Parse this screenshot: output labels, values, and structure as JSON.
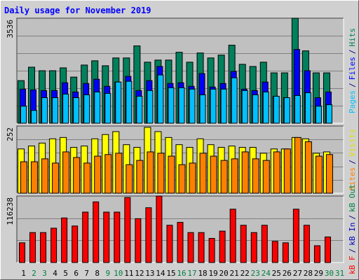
{
  "chart_data": [
    {
      "type": "bar",
      "title": "Daily usage for November 2019",
      "ylim": [
        0,
        3536
      ],
      "yticks": [
        3536
      ],
      "legend_separator": "/",
      "series": [
        {
          "name": "Pages",
          "color": "#00c0ff",
          "values": [
            573,
            430,
            860,
            860,
            979,
            860,
            956,
            1051,
            1003,
            1386,
            1410,
            908,
            1099,
            1624,
            1195,
            1195,
            1147,
            956,
            1147,
            1147,
            1529,
            1099,
            956,
            1051,
            908,
            860,
            932,
            1027,
            573,
            621,
            null
          ]
        },
        {
          "name": "Files",
          "color": "#0000ff",
          "values": [
            1147,
            1123,
            1099,
            1099,
            1362,
            1051,
            1338,
            1481,
            1242,
            1386,
            1577,
            1099,
            1433,
            1911,
            1338,
            1362,
            1242,
            1672,
            1218,
            1338,
            1744,
            1147,
            1099,
            1386,
            908,
            860,
            2485,
            1768,
            860,
            1051,
            null
          ]
        },
        {
          "name": "Hits",
          "color": "#00805c",
          "values": [
            1434,
            1887,
            1768,
            1768,
            1864,
            1553,
            1959,
            2102,
            1935,
            2198,
            2198,
            2604,
            2055,
            2126,
            2126,
            2389,
            2055,
            2365,
            2198,
            2294,
            2628,
            1983,
            1911,
            2055,
            1696,
            1696,
            3536,
            2437,
            1696,
            1696,
            null
          ]
        }
      ]
    },
    {
      "type": "bar",
      "ylim": [
        0,
        252
      ],
      "yticks": [
        252
      ],
      "legend_separator": "/",
      "series": [
        {
          "name": "Sites",
          "color": "#ff8000",
          "values": [
            118,
            118,
            129,
            113,
            155,
            134,
            113,
            139,
            145,
            150,
            107,
            123,
            155,
            150,
            139,
            107,
            113,
            150,
            139,
            123,
            129,
            155,
            129,
            123,
            155,
            166,
            209,
            193,
            139,
            145,
            null
          ]
        },
        {
          "name": "Visits",
          "color": "#ffff00",
          "values": [
            166,
            177,
            188,
            204,
            209,
            172,
            177,
            204,
            220,
            231,
            182,
            172,
            247,
            231,
            209,
            182,
            172,
            204,
            182,
            172,
            177,
            172,
            172,
            150,
            166,
            166,
            209,
            204,
            150,
            155,
            null
          ]
        }
      ]
    },
    {
      "type": "bar",
      "ylim": [
        0,
        116238
      ],
      "yticks": [
        116238
      ],
      "legend_separator": "/",
      "categories": [
        "1",
        "2",
        "3",
        "4",
        "5",
        "6",
        "7",
        "8",
        "9",
        "10",
        "11",
        "12",
        "13",
        "14",
        "15",
        "16",
        "17",
        "18",
        "19",
        "20",
        "21",
        "22",
        "23",
        "24",
        "25",
        "26",
        "27",
        "28",
        "29",
        "30",
        "31"
      ],
      "category_colors": [
        "#000000",
        "#008040",
        "#008040",
        "#000000",
        "#000000",
        "#000000",
        "#000000",
        "#000000",
        "#008040",
        "#008040",
        "#000000",
        "#000000",
        "#000000",
        "#000000",
        "#000000",
        "#008040",
        "#008040",
        "#000000",
        "#000000",
        "#000000",
        "#000000",
        "#000000",
        "#008040",
        "#008040",
        "#000000",
        "#000000",
        "#000000",
        "#000000",
        "#000000",
        "#008040",
        "#008040"
      ],
      "series": [
        {
          "name": "kB F",
          "color": "#ff0000",
          "values": [
            34490,
            52360,
            52360,
            60020,
            77900,
            63850,
            88110,
            106000,
            88110,
            88110,
            113650,
            76620,
            95780,
            116238,
            65130,
            70240,
            52360,
            52360,
            42140,
            54910,
            93220,
            65130,
            52360,
            65130,
            37030,
            34490,
            93220,
            65130,
            29370,
            44700,
            null
          ]
        },
        {
          "name": "kB In",
          "color": "#0000c0",
          "values": [
            0,
            0,
            0,
            0,
            0,
            0,
            0,
            0,
            0,
            0,
            0,
            0,
            0,
            0,
            0,
            0,
            0,
            0,
            0,
            0,
            0,
            0,
            0,
            0,
            0,
            0,
            0,
            0,
            0,
            0,
            null
          ]
        },
        {
          "name": "kB Out",
          "color": "#008040",
          "values": [
            0,
            0,
            0,
            0,
            0,
            0,
            0,
            0,
            0,
            0,
            0,
            0,
            0,
            0,
            0,
            0,
            0,
            0,
            0,
            0,
            0,
            0,
            0,
            0,
            0,
            0,
            0,
            0,
            0,
            0,
            null
          ]
        }
      ]
    }
  ]
}
